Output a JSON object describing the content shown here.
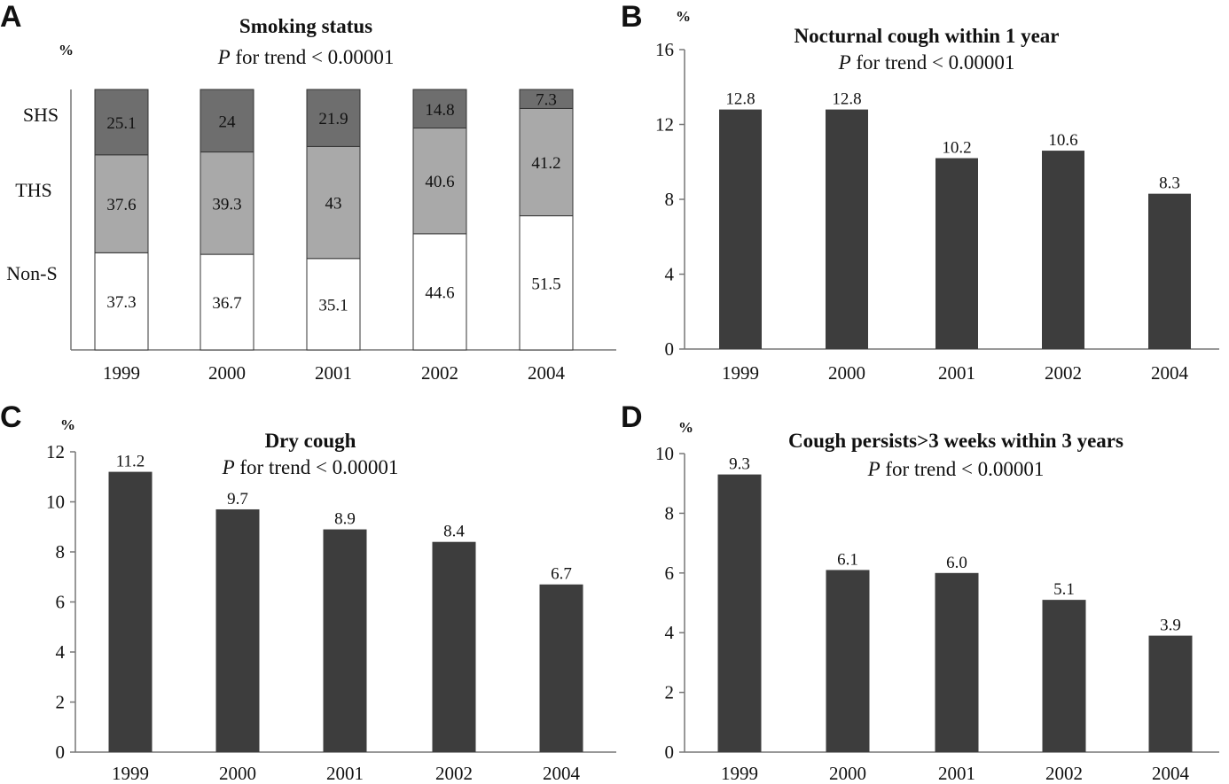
{
  "chart_data": [
    {
      "panel": "A",
      "type": "bar",
      "stacked": true,
      "title": "Smoking status",
      "subtitle_italic": "P",
      "subtitle_rest": " for trend < 0.00001",
      "ylabel": "%",
      "categories": [
        "1999",
        "2000",
        "2001",
        "2002",
        "2004"
      ],
      "series": [
        {
          "name": "Non-S",
          "values": [
            37.3,
            36.7,
            35.1,
            44.6,
            51.5
          ],
          "color": "#ffffff"
        },
        {
          "name": "THS",
          "values": [
            37.6,
            39.3,
            43,
            40.6,
            41.2
          ],
          "color": "#a9a9a9"
        },
        {
          "name": "SHS",
          "values": [
            25.1,
            24,
            21.9,
            14.8,
            7.3
          ],
          "color": "#6e6e6e"
        }
      ],
      "series_labels": [
        "Non-S",
        "THS",
        "SHS"
      ],
      "label_texts": [
        [
          "37.3",
          "36.7",
          "35.1",
          "44.6",
          "51.5"
        ],
        [
          "37.6",
          "39.3",
          "43",
          "40.6",
          "41.2"
        ],
        [
          "25.1",
          "24",
          "21.9",
          "14.8",
          "7.3"
        ]
      ],
      "ylim": [
        0,
        100
      ],
      "y_axis_shown": false,
      "legend": "left"
    },
    {
      "panel": "B",
      "type": "bar",
      "title": "Nocturnal cough within 1 year",
      "subtitle_italic": "P",
      "subtitle_rest": " for trend < 0.00001",
      "ylabel": "%",
      "categories": [
        "1999",
        "2000",
        "2001",
        "2002",
        "2004"
      ],
      "values": [
        12.8,
        12.8,
        10.2,
        10.6,
        8.3
      ],
      "label_texts": [
        "12.8",
        "12.8",
        "10.2",
        "10.6",
        "8.3"
      ],
      "ylim": [
        0,
        16
      ],
      "yticks": [
        0,
        4,
        8,
        12,
        16
      ],
      "ytick_labels": [
        "0",
        "4",
        "8",
        "12",
        "16"
      ],
      "bar_color": "#3d3d3d"
    },
    {
      "panel": "C",
      "type": "bar",
      "title": "Dry cough",
      "subtitle_italic": "P",
      "subtitle_rest": " for trend < 0.00001",
      "ylabel": "%",
      "categories": [
        "1999",
        "2000",
        "2001",
        "2002",
        "2004"
      ],
      "values": [
        11.2,
        9.7,
        8.9,
        8.4,
        6.7
      ],
      "label_texts": [
        "11.2",
        "9.7",
        "8.9",
        "8.4",
        "6.7"
      ],
      "ylim": [
        0,
        12
      ],
      "yticks": [
        0,
        2,
        4,
        6,
        8,
        10,
        12
      ],
      "ytick_labels": [
        "0",
        "2",
        "4",
        "6",
        "8",
        "10",
        "12"
      ],
      "bar_color": "#3d3d3d"
    },
    {
      "panel": "D",
      "type": "bar",
      "title": "Cough persists>3 weeks within 3 years",
      "subtitle_italic": "P",
      "subtitle_rest": " for trend < 0.00001",
      "ylabel": "%",
      "categories": [
        "1999",
        "2000",
        "2001",
        "2002",
        "2004"
      ],
      "values": [
        9.3,
        6.1,
        6.0,
        5.1,
        3.9
      ],
      "label_texts": [
        "9.3",
        "6.1",
        "6.0",
        "5.1",
        "3.9"
      ],
      "ylim": [
        0,
        10
      ],
      "yticks": [
        0,
        2,
        4,
        6,
        8,
        10
      ],
      "ytick_labels": [
        "0",
        "2",
        "4",
        "6",
        "8",
        "10"
      ],
      "bar_color": "#3d3d3d"
    }
  ]
}
